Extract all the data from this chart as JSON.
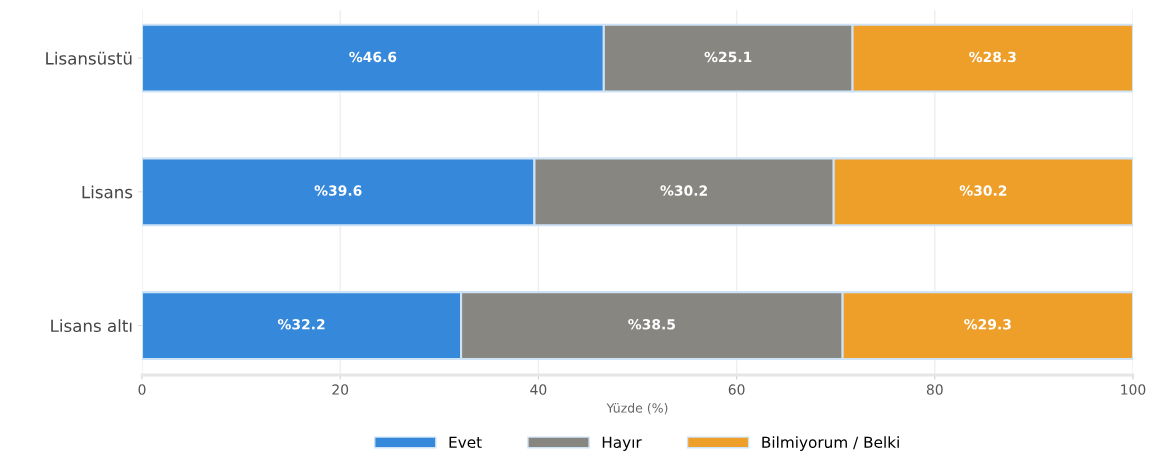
{
  "chart_data": {
    "type": "bar",
    "orientation": "horizontal",
    "stacked": true,
    "categories": [
      "Lisansüstü",
      "Lisans",
      "Lisans altı"
    ],
    "series": [
      {
        "name": "Evet",
        "color": "#3688db",
        "values": [
          46.6,
          39.6,
          32.2
        ]
      },
      {
        "name": "Hayır",
        "color": "#878681",
        "values": [
          25.1,
          30.2,
          38.5
        ]
      },
      {
        "name": "Bilmiyorum / Belki",
        "color": "#ee9f2a",
        "values": [
          28.3,
          30.2,
          29.3
        ]
      }
    ],
    "value_labels": [
      [
        "%46.6",
        "%39.6",
        "%32.2"
      ],
      [
        "%25.1",
        "%30.2",
        "%38.5"
      ],
      [
        "%28.3",
        "%30.2",
        "%29.3"
      ]
    ],
    "xlabel": "Yüzde (%)",
    "xlim": [
      0,
      100
    ],
    "xticks": [
      0,
      20,
      40,
      60,
      80,
      100
    ],
    "grid": "x",
    "legend": "bottom"
  }
}
